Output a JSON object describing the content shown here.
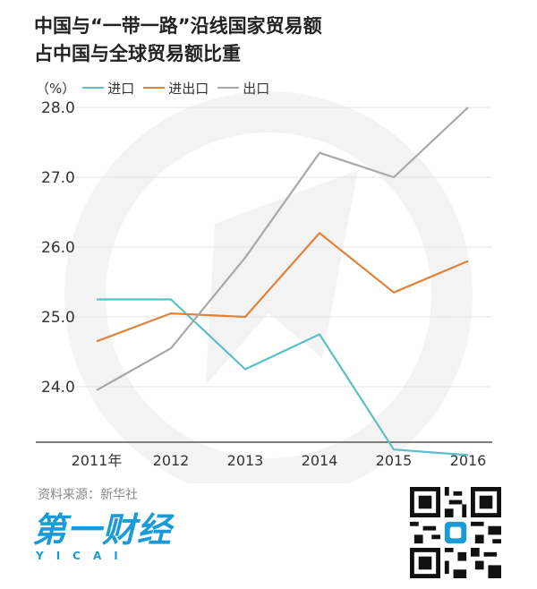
{
  "header": {
    "title_line1": "中国与“一带一路”沿线国家贸易额",
    "title_line2": "占中国与全球贸易额比重"
  },
  "legend": {
    "unit": "（%）",
    "items": [
      {
        "label": "进口",
        "color": "#5bbfc8"
      },
      {
        "label": "进出口",
        "color": "#e0823a"
      },
      {
        "label": "出口",
        "color": "#a8a8a8"
      }
    ]
  },
  "footer": {
    "source": "资料来源：新华社",
    "logo_cn": "第一财经",
    "logo_en": "YICAI"
  },
  "chart_data": {
    "type": "line",
    "categories": [
      "2011年",
      "2012",
      "2013",
      "2014",
      "2015",
      "2016"
    ],
    "yticks": [
      "28.0",
      "27.0",
      "26.0",
      "25.0",
      "24.0"
    ],
    "ylim": [
      23.0,
      28.0
    ],
    "grid": true,
    "legend_position": "top-left",
    "series": [
      {
        "name": "进口",
        "color": "#5bbfc8",
        "values": [
          25.25,
          25.25,
          24.25,
          24.75,
          23.1,
          23.02
        ]
      },
      {
        "name": "进出口",
        "color": "#e0823a",
        "values": [
          24.65,
          25.05,
          25.0,
          26.2,
          25.35,
          25.8
        ]
      },
      {
        "name": "出口",
        "color": "#a8a8a8",
        "values": [
          23.95,
          24.55,
          25.85,
          27.35,
          27.0,
          28.0
        ]
      }
    ]
  }
}
